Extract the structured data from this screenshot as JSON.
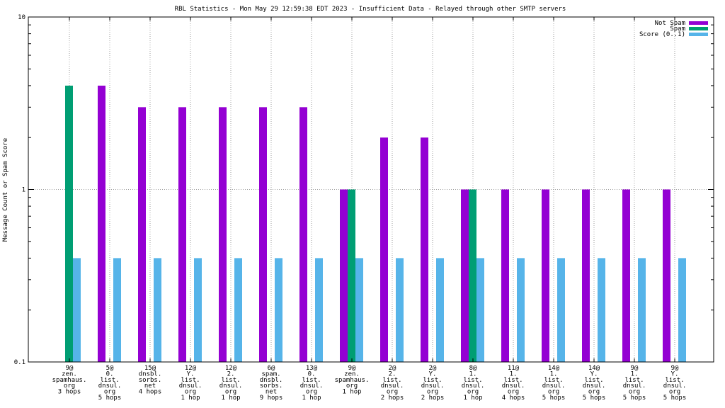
{
  "chart_data": {
    "type": "bar",
    "title": "RBL Statistics - Mon May 29 12:59:38 EDT 2023 - Insufficient Data - Relayed through other SMTP servers",
    "ylabel": "Message Count or Spam Score",
    "xlabel": "",
    "yscale": "log",
    "ylim": [
      0.1,
      10
    ],
    "yticks": [
      {
        "value": 0.1,
        "label": "0.1"
      },
      {
        "value": 1,
        "label": "1"
      },
      {
        "value": 10,
        "label": "10"
      }
    ],
    "grid": true,
    "legend_position": "top-right",
    "categories": [
      [
        "9@",
        "zen.",
        "spamhaus.",
        "org",
        "3 hops"
      ],
      [
        "5@",
        "0.",
        "list.",
        "dnsul.",
        "org",
        "5 hops"
      ],
      [
        "15@",
        "dnsbl.",
        "sorbs.",
        "net",
        "4 hops"
      ],
      [
        "12@",
        "Y.",
        "list.",
        "dnsul.",
        "org",
        "1 hop"
      ],
      [
        "12@",
        "2.",
        "list.",
        "dnsul.",
        "org",
        "1 hop"
      ],
      [
        "6@",
        "spam.",
        "dnsbl.",
        "sorbs.",
        "net",
        "9 hops"
      ],
      [
        "13@",
        "0.",
        "list.",
        "dnsul.",
        "org",
        "1 hop"
      ],
      [
        "9@",
        "zen.",
        "spamhaus.",
        "org",
        "1 hop"
      ],
      [
        "2@",
        "2.",
        "list.",
        "dnsul.",
        "org",
        "2 hops"
      ],
      [
        "2@",
        "Y.",
        "list.",
        "dnsul.",
        "org",
        "2 hops"
      ],
      [
        "8@",
        "1.",
        "list.",
        "dnsul.",
        "org",
        "1 hop"
      ],
      [
        "11@",
        "1.",
        "list.",
        "dnsul.",
        "org",
        "4 hops"
      ],
      [
        "14@",
        "1.",
        "list.",
        "dnsul.",
        "org",
        "5 hops"
      ],
      [
        "14@",
        "Y.",
        "list.",
        "dnsul.",
        "org",
        "5 hops"
      ],
      [
        "9@",
        "1.",
        "list.",
        "dnsul.",
        "org",
        "5 hops"
      ],
      [
        "9@",
        "Y.",
        "list.",
        "dnsul.",
        "org",
        "5 hops"
      ]
    ],
    "series": [
      {
        "name": "Not Spam",
        "color": "#9400d3",
        "values": [
          0,
          4,
          3,
          3,
          3,
          3,
          3,
          1,
          2,
          2,
          1,
          1,
          1,
          1,
          1,
          1
        ]
      },
      {
        "name": "Spam",
        "color": "#009e73",
        "values": [
          4,
          0,
          0,
          0,
          0,
          0,
          0,
          1,
          0,
          0,
          1,
          0,
          0,
          0,
          0,
          0
        ]
      },
      {
        "name": "Score (0..1)",
        "color": "#56b4e9",
        "values": [
          0.4,
          0.4,
          0.4,
          0.4,
          0.4,
          0.4,
          0.4,
          0.4,
          0.4,
          0.4,
          0.4,
          0.4,
          0.4,
          0.4,
          0.4,
          0.4
        ]
      }
    ]
  }
}
